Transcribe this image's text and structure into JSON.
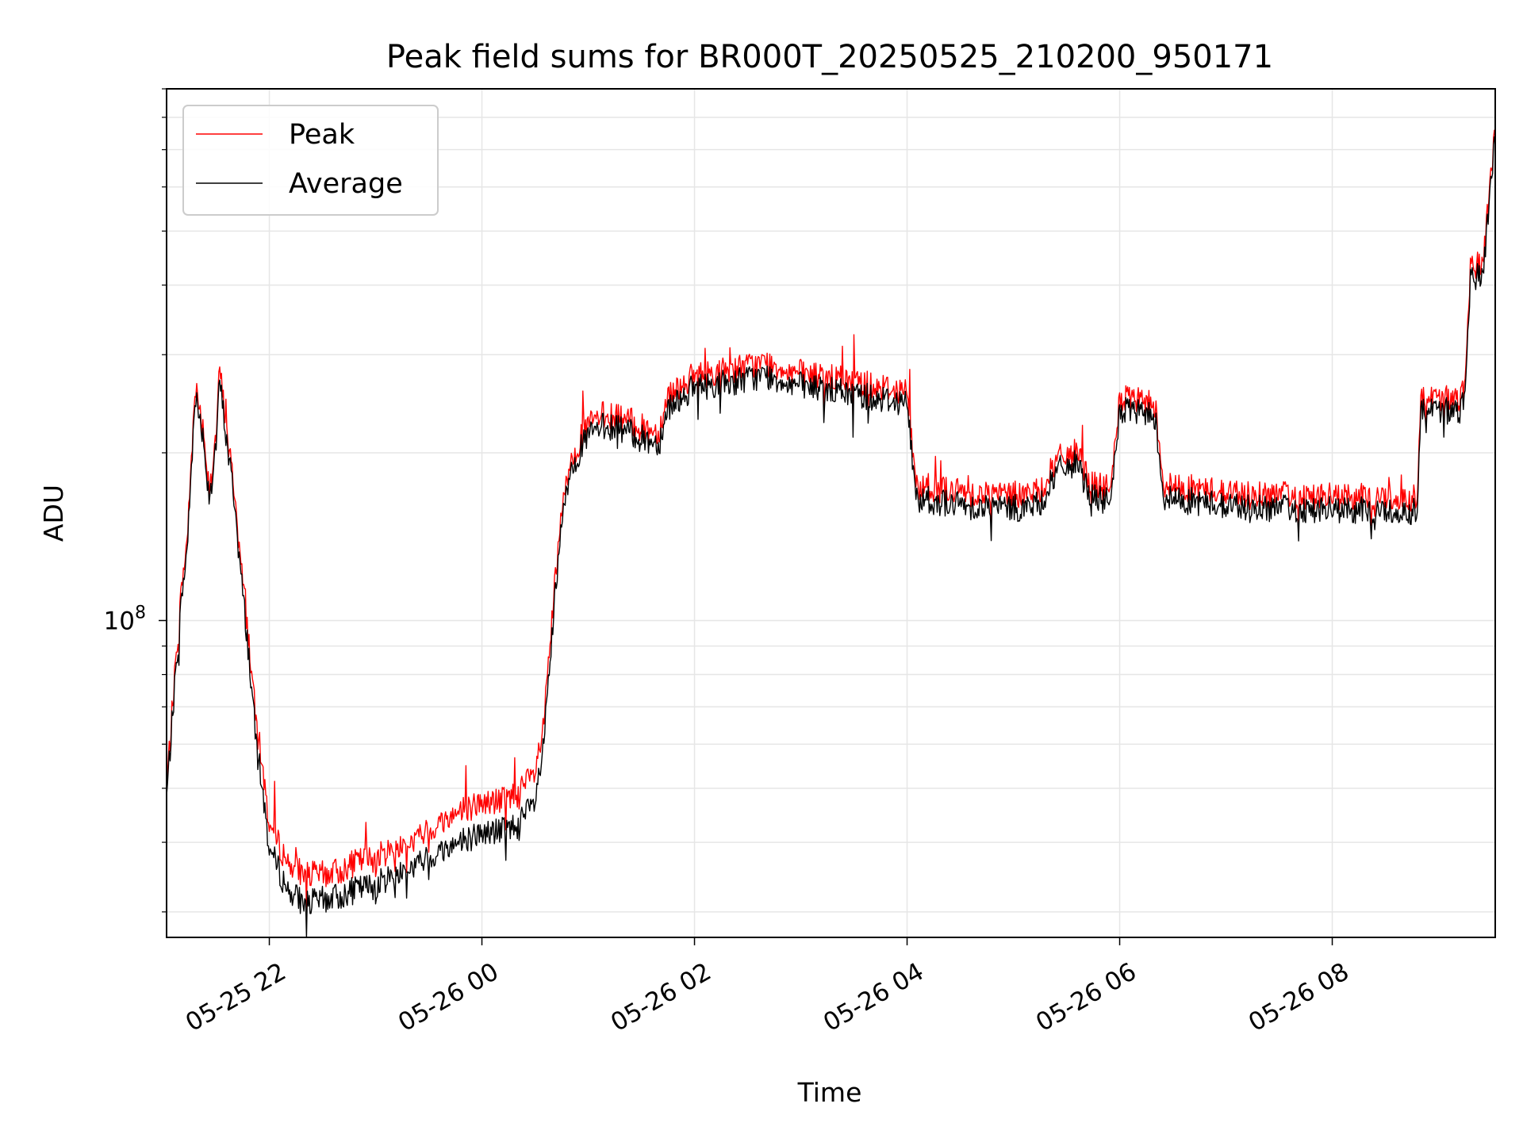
{
  "chart_data": {
    "type": "line",
    "title": "Peak field sums for BR000T_20250525_210200_950171",
    "xlabel": "Time",
    "ylabel": "ADU",
    "yscale": "log",
    "grid": true,
    "legend_position": "top-left",
    "x_tick_labels": [
      "05-25 22",
      "05-26 00",
      "05-26 02",
      "05-26 04",
      "05-26 06",
      "05-26 08"
    ],
    "y_tick_labels": [
      {
        "base": "10",
        "exp": "8"
      }
    ],
    "xlim": [
      "05-25 21:02",
      "05-26 09:32"
    ],
    "ylim": [
      27000000,
      900000000
    ],
    "series": [
      {
        "name": "Peak",
        "color": "#ff0000",
        "points": [
          [
            "05-25 21:02",
            50000000
          ],
          [
            "05-25 21:06",
            75000000
          ],
          [
            "05-25 21:10",
            110000000
          ],
          [
            "05-25 21:14",
            145000000
          ],
          [
            "05-25 21:18",
            265000000
          ],
          [
            "05-25 21:22",
            230000000
          ],
          [
            "05-25 21:26",
            175000000
          ],
          [
            "05-25 21:30",
            215000000
          ],
          [
            "05-25 21:32",
            285000000
          ],
          [
            "05-25 21:36",
            215000000
          ],
          [
            "05-25 21:40",
            175000000
          ],
          [
            "05-25 21:44",
            125000000
          ],
          [
            "05-25 21:48",
            95000000
          ],
          [
            "05-25 21:52",
            68000000
          ],
          [
            "05-25 21:56",
            55000000
          ],
          [
            "05-25 22:00",
            43000000
          ],
          [
            "05-25 22:10",
            37000000
          ],
          [
            "05-25 22:20",
            35000000
          ],
          [
            "05-25 22:30",
            35000000
          ],
          [
            "05-25 22:40",
            35500000
          ],
          [
            "05-25 22:50",
            37000000
          ],
          [
            "05-25 23:00",
            37500000
          ],
          [
            "05-25 23:10",
            39000000
          ],
          [
            "05-25 23:20",
            40000000
          ],
          [
            "05-25 23:30",
            42000000
          ],
          [
            "05-25 23:40",
            44000000
          ],
          [
            "05-25 23:50",
            46000000
          ],
          [
            "05-26 00:00",
            47000000
          ],
          [
            "05-26 00:10",
            47500000
          ],
          [
            "05-26 00:20",
            49000000
          ],
          [
            "05-26 00:30",
            53000000
          ],
          [
            "05-26 00:35",
            65000000
          ],
          [
            "05-26 00:40",
            105000000
          ],
          [
            "05-26 00:45",
            155000000
          ],
          [
            "05-26 00:50",
            195000000
          ],
          [
            "05-26 01:00",
            225000000
          ],
          [
            "05-26 01:10",
            235000000
          ],
          [
            "05-26 01:20",
            230000000
          ],
          [
            "05-26 01:30",
            222000000
          ],
          [
            "05-26 01:40",
            218000000
          ],
          [
            "05-26 01:45",
            255000000
          ],
          [
            "05-26 02:00",
            275000000
          ],
          [
            "05-26 02:20",
            282000000
          ],
          [
            "05-26 02:40",
            290000000
          ],
          [
            "05-26 03:00",
            278000000
          ],
          [
            "05-26 03:20",
            272000000
          ],
          [
            "05-26 03:40",
            265000000
          ],
          [
            "05-26 04:00",
            258000000
          ],
          [
            "05-26 04:05",
            175000000
          ],
          [
            "05-26 04:30",
            170000000
          ],
          [
            "05-26 05:00",
            168000000
          ],
          [
            "05-26 05:15",
            170000000
          ],
          [
            "05-26 05:25",
            195000000
          ],
          [
            "05-26 05:35",
            200000000
          ],
          [
            "05-26 05:45",
            175000000
          ],
          [
            "05-26 05:55",
            172000000
          ],
          [
            "05-26 06:00",
            250000000
          ],
          [
            "05-26 06:20",
            245000000
          ],
          [
            "05-26 06:25",
            175000000
          ],
          [
            "05-26 07:00",
            170000000
          ],
          [
            "05-26 07:30",
            168000000
          ],
          [
            "05-26 08:00",
            167000000
          ],
          [
            "05-26 08:30",
            166000000
          ],
          [
            "05-26 08:48",
            166000000
          ],
          [
            "05-26 08:50",
            255000000
          ],
          [
            "05-26 09:10",
            248000000
          ],
          [
            "05-26 09:15",
            258000000
          ],
          [
            "05-26 09:18",
            440000000
          ],
          [
            "05-26 09:25",
            430000000
          ],
          [
            "05-26 09:32",
            780000000
          ]
        ]
      },
      {
        "name": "Average",
        "color": "#000000",
        "points": [
          [
            "05-25 21:02",
            48000000
          ],
          [
            "05-25 21:06",
            72000000
          ],
          [
            "05-25 21:10",
            105000000
          ],
          [
            "05-25 21:14",
            140000000
          ],
          [
            "05-25 21:18",
            255000000
          ],
          [
            "05-25 21:22",
            222000000
          ],
          [
            "05-25 21:26",
            168000000
          ],
          [
            "05-25 21:30",
            208000000
          ],
          [
            "05-25 21:32",
            270000000
          ],
          [
            "05-25 21:36",
            208000000
          ],
          [
            "05-25 21:40",
            168000000
          ],
          [
            "05-25 21:44",
            120000000
          ],
          [
            "05-25 21:48",
            90000000
          ],
          [
            "05-25 21:52",
            63000000
          ],
          [
            "05-25 21:56",
            50000000
          ],
          [
            "05-25 22:00",
            39000000
          ],
          [
            "05-25 22:10",
            33000000
          ],
          [
            "05-25 22:20",
            31000000
          ],
          [
            "05-25 22:30",
            31500000
          ],
          [
            "05-25 22:40",
            32000000
          ],
          [
            "05-25 22:50",
            33000000
          ],
          [
            "05-25 23:00",
            33500000
          ],
          [
            "05-25 23:10",
            35000000
          ],
          [
            "05-25 23:20",
            36000000
          ],
          [
            "05-25 23:30",
            37500000
          ],
          [
            "05-25 23:40",
            39000000
          ],
          [
            "05-25 23:50",
            40500000
          ],
          [
            "05-26 00:00",
            41500000
          ],
          [
            "05-26 00:10",
            42000000
          ],
          [
            "05-26 00:20",
            43000000
          ],
          [
            "05-26 00:30",
            47000000
          ],
          [
            "05-26 00:35",
            60000000
          ],
          [
            "05-26 00:40",
            98000000
          ],
          [
            "05-26 00:45",
            148000000
          ],
          [
            "05-26 00:50",
            188000000
          ],
          [
            "05-26 01:00",
            215000000
          ],
          [
            "05-26 01:10",
            224000000
          ],
          [
            "05-26 01:20",
            220000000
          ],
          [
            "05-26 01:30",
            212000000
          ],
          [
            "05-26 01:40",
            208000000
          ],
          [
            "05-26 01:45",
            242000000
          ],
          [
            "05-26 02:00",
            262000000
          ],
          [
            "05-26 02:20",
            268000000
          ],
          [
            "05-26 02:40",
            275000000
          ],
          [
            "05-26 03:00",
            264000000
          ],
          [
            "05-26 03:20",
            258000000
          ],
          [
            "05-26 03:40",
            252000000
          ],
          [
            "05-26 04:00",
            246000000
          ],
          [
            "05-26 04:05",
            166000000
          ],
          [
            "05-26 04:30",
            161000000
          ],
          [
            "05-26 05:00",
            159000000
          ],
          [
            "05-26 05:15",
            161000000
          ],
          [
            "05-26 05:25",
            186000000
          ],
          [
            "05-26 05:35",
            191000000
          ],
          [
            "05-26 05:45",
            166000000
          ],
          [
            "05-26 05:55",
            163000000
          ],
          [
            "05-26 06:00",
            238000000
          ],
          [
            "05-26 06:20",
            233000000
          ],
          [
            "05-26 06:25",
            166000000
          ],
          [
            "05-26 07:00",
            161000000
          ],
          [
            "05-26 07:30",
            159000000
          ],
          [
            "05-26 08:00",
            158000000
          ],
          [
            "05-26 08:30",
            157000000
          ],
          [
            "05-26 08:48",
            157000000
          ],
          [
            "05-26 08:50",
            243000000
          ],
          [
            "05-26 09:10",
            236000000
          ],
          [
            "05-26 09:15",
            246000000
          ],
          [
            "05-26 09:18",
            420000000
          ],
          [
            "05-26 09:25",
            410000000
          ],
          [
            "05-26 09:32",
            760000000
          ]
        ]
      }
    ]
  }
}
